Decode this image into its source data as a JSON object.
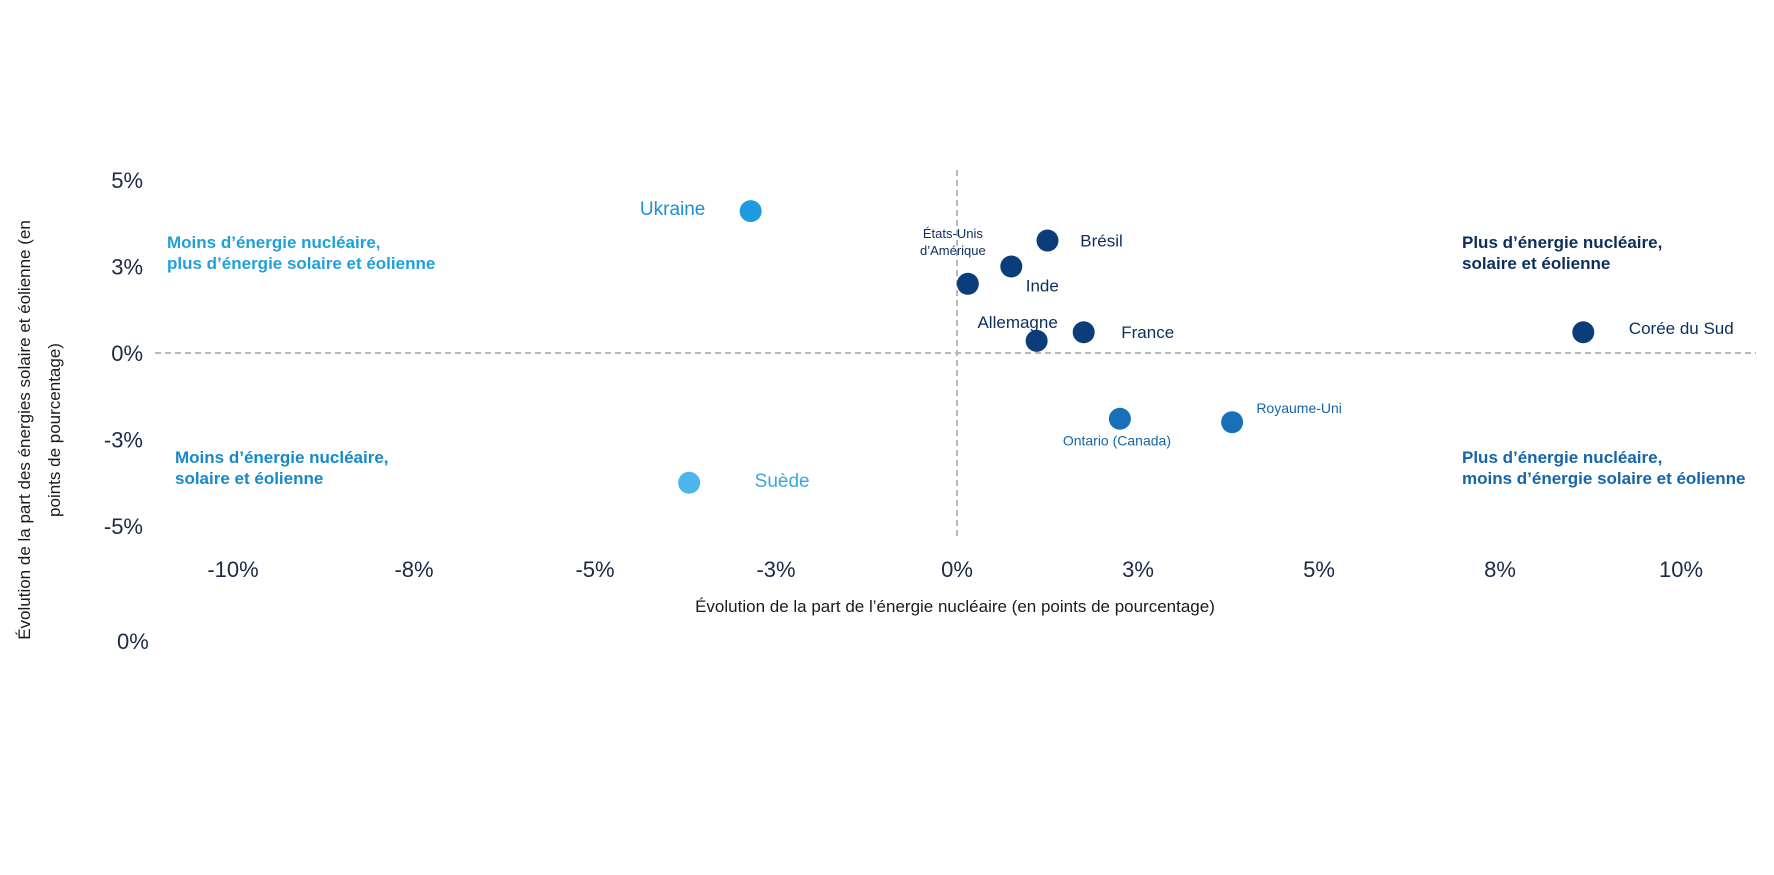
{
  "chart_data": {
    "type": "scatter",
    "xlabel": "Évolution de la part de l’énergie nucléaire (en points de pourcentage)",
    "ylabel_lines": [
      "Évolution de la part des énergies solaire et éolienne (en",
      "points de pourcentage)"
    ],
    "xlim": [
      -12.5,
      12.5
    ],
    "ylim": [
      -6.5,
      6.5
    ],
    "x_ticks": [
      {
        "value": -10,
        "label": "-10%"
      },
      {
        "value": -7.5,
        "label": "-8%"
      },
      {
        "value": -5,
        "label": "-5%"
      },
      {
        "value": -2.5,
        "label": "-3%"
      },
      {
        "value": 0,
        "label": "0%"
      },
      {
        "value": 2.5,
        "label": "3%"
      },
      {
        "value": 5,
        "label": "5%"
      },
      {
        "value": 7.5,
        "label": "8%"
      },
      {
        "value": 10,
        "label": "10%"
      }
    ],
    "y_ticks": [
      {
        "value": 5,
        "label": "5%"
      },
      {
        "value": 2.5,
        "label": "3%"
      },
      {
        "value": 0,
        "label": "0%"
      },
      {
        "value": -2.5,
        "label": "-3%"
      },
      {
        "value": -5,
        "label": "-5%"
      }
    ],
    "extra_label": "0%",
    "quadrants": [
      {
        "lines": [
          "Moins d’énergie nucléaire,",
          "plus d’énergie solaire et éolienne"
        ],
        "color": "#1fa0d8"
      },
      {
        "lines": [
          "Plus d’énergie nucléaire,",
          "solaire et éolienne"
        ],
        "color": "#0b2e5c"
      },
      {
        "lines": [
          "Moins d’énergie nucléaire,",
          "solaire et éolienne"
        ],
        "color": "#1788c9"
      },
      {
        "lines": [
          "Plus d’énergie nucléaire,",
          "moins d’énergie solaire et éolienne"
        ],
        "color": "#1565a8"
      }
    ],
    "points": [
      {
        "name": "Ukraine",
        "x": -2.85,
        "y": 4.1,
        "color": "#1e9ae0"
      },
      {
        "name": "Suède",
        "x": -3.7,
        "y": -3.75,
        "color": "#4db4ec"
      },
      {
        "name": "États-Unis d’Amérique",
        "x": 0.15,
        "y": 2.0,
        "color": "#0b3d7a"
      },
      {
        "name": "Inde",
        "x": 0.75,
        "y": 2.5,
        "color": "#0b3d7a"
      },
      {
        "name": "Brésil",
        "x": 1.25,
        "y": 3.25,
        "color": "#0b3d7a"
      },
      {
        "name": "Allemagne",
        "x": 1.1,
        "y": 0.35,
        "color": "#0b3d7a"
      },
      {
        "name": "France",
        "x": 1.75,
        "y": 0.6,
        "color": "#0b3d7a"
      },
      {
        "name": "Corée du Sud",
        "x": 8.65,
        "y": 0.6,
        "color": "#0b3d7a"
      },
      {
        "name": "Ontario (Canada)",
        "x": 2.25,
        "y": -1.9,
        "color": "#1770b8"
      },
      {
        "name": "Royaume-Uni",
        "x": 3.8,
        "y": -2.0,
        "color": "#1770b8"
      }
    ]
  }
}
